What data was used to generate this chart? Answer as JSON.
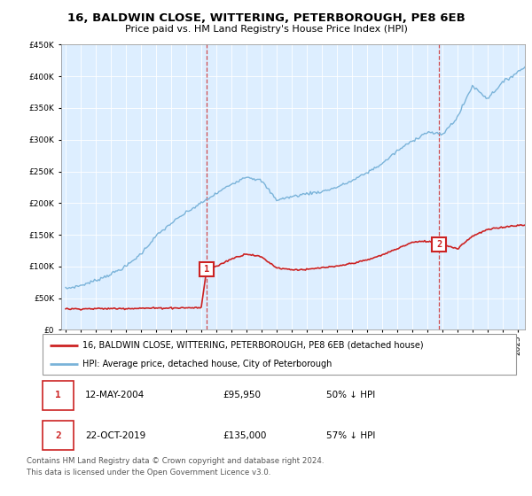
{
  "title": "16, BALDWIN CLOSE, WITTERING, PETERBOROUGH, PE8 6EB",
  "subtitle": "Price paid vs. HM Land Registry's House Price Index (HPI)",
  "legend_line1": "16, BALDWIN CLOSE, WITTERING, PETERBOROUGH, PE8 6EB (detached house)",
  "legend_line2": "HPI: Average price, detached house, City of Peterborough",
  "transaction1_date": "12-MAY-2004",
  "transaction1_price": 95950,
  "transaction1_label": "50% ↓ HPI",
  "transaction2_date": "22-OCT-2019",
  "transaction2_price": 135000,
  "transaction2_label": "57% ↓ HPI",
  "footer_line1": "Contains HM Land Registry data © Crown copyright and database right 2024.",
  "footer_line2": "This data is licensed under the Open Government Licence v3.0.",
  "hpi_color": "#7ab3d9",
  "price_color": "#cc2222",
  "marker_color": "#cc2222",
  "background_color": "#ffffff",
  "chart_bg_color": "#ddeeff",
  "grid_color": "#ffffff",
  "ylim": [
    0,
    450000
  ],
  "yticks": [
    0,
    50000,
    100000,
    150000,
    200000,
    250000,
    300000,
    350000,
    400000,
    450000
  ],
  "xlim_start": 1994.7,
  "xlim_end": 2025.5,
  "transaction1_x": 2004.36,
  "transaction2_x": 2019.8
}
